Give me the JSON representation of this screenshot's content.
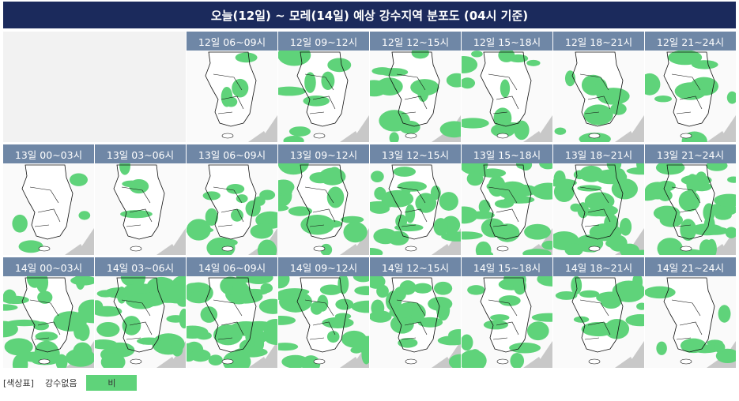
{
  "title": "오늘(12일) ~ 모레(14일) 예상 강수지역 분포도 (04시 기준)",
  "rows": [
    {
      "labels": [
        "12일 06~09시",
        "12일 09~12시",
        "12일 12~15시",
        "12일 15~18시",
        "12일 18~21시",
        "12일 21~24시"
      ]
    },
    {
      "labels": [
        "13일 00~03시",
        "13일 03~06시",
        "13일 06~09시",
        "13일 09~12시",
        "13일 12~15시",
        "13일 15~18시",
        "13일 18~21시",
        "13일 21~24시"
      ]
    },
    {
      "labels": [
        "14일 00~03시",
        "14일 03~06시",
        "14일 06~09시",
        "14일 09~12시",
        "14일 12~15시",
        "14일 15~18시",
        "14일 18~21시",
        "14일 21~24시"
      ]
    }
  ],
  "legend": {
    "label": "[색상표]",
    "items": [
      "강수없음",
      "비"
    ]
  }
}
